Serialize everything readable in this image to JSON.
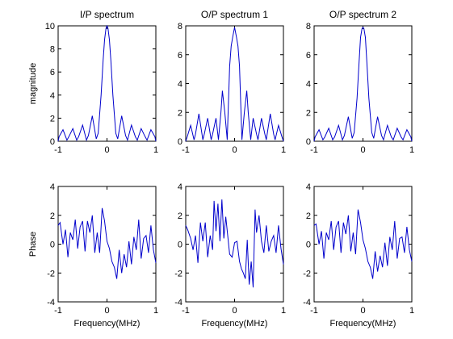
{
  "chart_data": [
    {
      "type": "line",
      "title": "I/P spectrum",
      "xlabel": "",
      "ylabel": "magnitude",
      "xlim": [
        -1,
        1
      ],
      "ylim": [
        0,
        10
      ],
      "xticks": [
        -1,
        0,
        1
      ],
      "yticks": [
        0,
        2,
        4,
        6,
        8,
        10
      ],
      "series": [
        {
          "color": "#0000cc",
          "x": [
            -1.0,
            -0.98,
            -0.9,
            -0.82,
            -0.78,
            -0.7,
            -0.62,
            -0.58,
            -0.5,
            -0.42,
            -0.38,
            -0.3,
            -0.22,
            -0.18,
            -0.12,
            -0.08,
            -0.05,
            -0.02,
            0.0,
            0.02,
            0.05,
            0.08,
            0.12,
            0.18,
            0.22,
            0.3,
            0.38,
            0.42,
            0.5,
            0.58,
            0.62,
            0.7,
            0.78,
            0.82,
            0.9,
            0.98,
            1.0
          ],
          "y": [
            0.0,
            0.4,
            1.0,
            0.1,
            0.4,
            1.1,
            0.1,
            0.4,
            1.4,
            0.1,
            0.5,
            2.2,
            0.2,
            0.7,
            4.0,
            7.0,
            8.8,
            9.8,
            10.0,
            9.8,
            8.8,
            7.0,
            4.0,
            0.7,
            0.2,
            2.2,
            0.5,
            0.1,
            1.4,
            0.4,
            0.1,
            1.1,
            0.4,
            0.1,
            1.0,
            0.4,
            0.0
          ]
        }
      ]
    },
    {
      "type": "line",
      "title": "O/P spectrum 1",
      "xlabel": "",
      "ylabel": "",
      "xlim": [
        -1,
        1
      ],
      "ylim": [
        0,
        8
      ],
      "xticks": [
        -1,
        0,
        1
      ],
      "yticks": [
        0,
        2,
        4,
        6,
        8
      ],
      "series": [
        {
          "color": "#0000cc",
          "x": [
            -1.0,
            -0.97,
            -0.9,
            -0.83,
            -0.8,
            -0.73,
            -0.65,
            -0.62,
            -0.55,
            -0.48,
            -0.45,
            -0.38,
            -0.33,
            -0.28,
            -0.25,
            -0.2,
            -0.15,
            -0.1,
            -0.07,
            -0.04,
            0.0,
            0.04,
            0.07,
            0.1,
            0.15,
            0.2,
            0.25,
            0.28,
            0.33,
            0.38,
            0.45,
            0.48,
            0.55,
            0.62,
            0.65,
            0.73,
            0.8,
            0.83,
            0.9,
            0.97,
            1.0
          ],
          "y": [
            0.0,
            0.3,
            1.1,
            0.1,
            0.5,
            1.9,
            0.1,
            0.5,
            1.6,
            0.1,
            0.5,
            1.6,
            0.1,
            2.0,
            3.5,
            2.0,
            0.1,
            5.2,
            6.6,
            7.2,
            7.9,
            7.2,
            6.6,
            5.2,
            0.1,
            2.0,
            3.5,
            2.0,
            0.1,
            1.6,
            0.5,
            0.1,
            1.6,
            0.5,
            0.1,
            1.9,
            0.5,
            0.1,
            1.1,
            0.3,
            0.0
          ]
        }
      ]
    },
    {
      "type": "line",
      "title": "O/P spectrum 2",
      "xlabel": "",
      "ylabel": "",
      "xlim": [
        -1,
        1
      ],
      "ylim": [
        0,
        8
      ],
      "xticks": [
        -1,
        0,
        1
      ],
      "yticks": [
        0,
        2,
        4,
        6,
        8
      ],
      "series": [
        {
          "color": "#0000cc",
          "x": [
            -1.0,
            -0.98,
            -0.9,
            -0.82,
            -0.78,
            -0.7,
            -0.62,
            -0.58,
            -0.5,
            -0.42,
            -0.38,
            -0.3,
            -0.22,
            -0.18,
            -0.12,
            -0.08,
            -0.05,
            -0.02,
            0.0,
            0.02,
            0.05,
            0.08,
            0.12,
            0.18,
            0.22,
            0.3,
            0.38,
            0.42,
            0.5,
            0.58,
            0.62,
            0.7,
            0.78,
            0.82,
            0.9,
            0.98,
            1.0
          ],
          "y": [
            0.0,
            0.3,
            0.8,
            0.1,
            0.3,
            0.9,
            0.1,
            0.3,
            1.1,
            0.1,
            0.4,
            1.7,
            0.2,
            0.6,
            3.0,
            5.5,
            7.2,
            7.8,
            7.9,
            7.8,
            7.2,
            5.5,
            3.0,
            0.6,
            0.2,
            1.7,
            0.4,
            0.1,
            1.1,
            0.3,
            0.1,
            0.9,
            0.3,
            0.1,
            0.8,
            0.3,
            0.0
          ]
        }
      ]
    },
    {
      "type": "line",
      "title": "",
      "xlabel": "Frequency(MHz)",
      "ylabel": "Phase",
      "xlim": [
        -1,
        1
      ],
      "ylim": [
        -4,
        4
      ],
      "xticks": [
        -1,
        0,
        1
      ],
      "yticks": [
        -4,
        -2,
        0,
        2,
        4
      ],
      "series": [
        {
          "color": "#0000cc",
          "x": [
            -1.0,
            -0.96,
            -0.9,
            -0.85,
            -0.8,
            -0.75,
            -0.7,
            -0.65,
            -0.6,
            -0.55,
            -0.5,
            -0.45,
            -0.4,
            -0.35,
            -0.3,
            -0.25,
            -0.2,
            -0.15,
            -0.1,
            -0.05,
            0.0,
            0.05,
            0.1,
            0.15,
            0.2,
            0.25,
            0.3,
            0.35,
            0.4,
            0.45,
            0.5,
            0.55,
            0.6,
            0.65,
            0.7,
            0.75,
            0.8,
            0.85,
            0.9,
            0.95,
            1.0
          ],
          "y": [
            1.3,
            1.5,
            0.0,
            1.0,
            -0.9,
            0.8,
            0.3,
            1.7,
            -0.3,
            1.2,
            1.6,
            -0.5,
            1.6,
            0.8,
            2.0,
            -0.6,
            0.8,
            -0.6,
            2.5,
            1.6,
            0.2,
            -0.3,
            -1.2,
            -1.6,
            -2.4,
            -0.4,
            -2.0,
            -0.7,
            -1.6,
            0.2,
            -1.4,
            0.5,
            -0.4,
            1.7,
            -1.0,
            0.4,
            0.6,
            -0.6,
            1.3,
            -0.4,
            -1.3
          ]
        }
      ]
    },
    {
      "type": "line",
      "title": "",
      "xlabel": "Frequency(MHz)",
      "ylabel": "",
      "xlim": [
        -1,
        1
      ],
      "ylim": [
        -4,
        4
      ],
      "xticks": [
        -1,
        0,
        1
      ],
      "yticks": [
        -4,
        -2,
        0,
        2,
        4
      ],
      "series": [
        {
          "color": "#0000cc",
          "x": [
            -1.0,
            -0.96,
            -0.9,
            -0.85,
            -0.8,
            -0.75,
            -0.7,
            -0.65,
            -0.6,
            -0.55,
            -0.5,
            -0.45,
            -0.42,
            -0.38,
            -0.34,
            -0.3,
            -0.26,
            -0.22,
            -0.18,
            -0.14,
            -0.1,
            -0.05,
            0.0,
            0.05,
            0.1,
            0.14,
            0.18,
            0.22,
            0.26,
            0.3,
            0.34,
            0.38,
            0.42,
            0.45,
            0.5,
            0.55,
            0.6,
            0.65,
            0.7,
            0.75,
            0.8,
            0.85,
            0.9,
            0.95,
            1.0
          ],
          "y": [
            1.3,
            1.0,
            0.4,
            -0.4,
            0.6,
            -1.3,
            1.5,
            0.2,
            1.5,
            -0.9,
            0.6,
            -0.4,
            3.0,
            0.9,
            2.8,
            0.2,
            3.1,
            0.4,
            1.9,
            0.6,
            -0.7,
            -0.9,
            0.1,
            0.2,
            -1.2,
            -1.7,
            -2.0,
            -2.4,
            0.3,
            -2.8,
            -1.2,
            -3.0,
            2.4,
            0.8,
            2.0,
            0.2,
            -0.6,
            1.3,
            -0.5,
            0.2,
            0.6,
            -0.6,
            1.3,
            -0.3,
            -1.4
          ]
        }
      ]
    },
    {
      "type": "line",
      "title": "",
      "xlabel": "Frequency(MHz)",
      "ylabel": "",
      "xlim": [
        -1,
        1
      ],
      "ylim": [
        -4,
        4
      ],
      "xticks": [
        -1,
        0,
        1
      ],
      "yticks": [
        -4,
        -2,
        0,
        2,
        4
      ],
      "series": [
        {
          "color": "#0000cc",
          "x": [
            -1.0,
            -0.96,
            -0.9,
            -0.85,
            -0.8,
            -0.75,
            -0.7,
            -0.65,
            -0.6,
            -0.55,
            -0.5,
            -0.45,
            -0.4,
            -0.35,
            -0.3,
            -0.25,
            -0.2,
            -0.15,
            -0.1,
            -0.05,
            0.0,
            0.05,
            0.1,
            0.15,
            0.2,
            0.25,
            0.3,
            0.35,
            0.4,
            0.45,
            0.5,
            0.55,
            0.6,
            0.65,
            0.7,
            0.75,
            0.8,
            0.85,
            0.9,
            0.95,
            1.0
          ],
          "y": [
            1.3,
            1.4,
            0.0,
            0.9,
            -1.0,
            0.8,
            0.3,
            1.6,
            -0.4,
            1.2,
            1.6,
            -0.6,
            1.5,
            0.7,
            2.0,
            -0.5,
            0.8,
            -0.7,
            2.4,
            1.5,
            0.3,
            -0.3,
            -1.2,
            -1.6,
            -2.4,
            -0.5,
            -1.9,
            -0.8,
            -1.6,
            0.1,
            -1.5,
            0.5,
            -0.4,
            1.6,
            -1.0,
            0.4,
            0.5,
            -0.6,
            1.2,
            -0.4,
            -1.2
          ]
        }
      ]
    }
  ]
}
